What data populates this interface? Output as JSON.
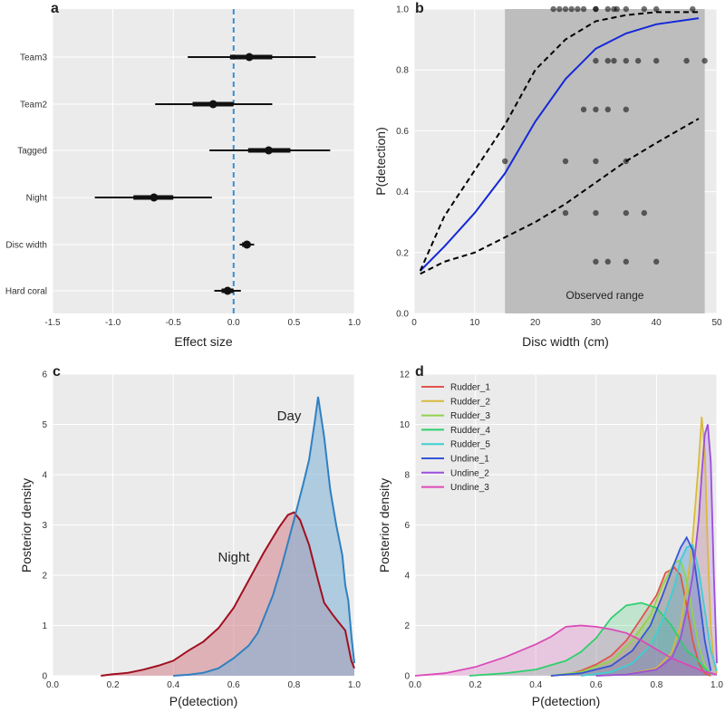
{
  "chart_data": [
    {
      "panel": "a",
      "type": "forest",
      "xlabel": "Effect size",
      "xlim": [
        -1.5,
        1.0
      ],
      "xticks": [
        "-1.5",
        "-1.0",
        "-0.5",
        "0.0",
        "0.5",
        "1.0"
      ],
      "reference_line": 0,
      "colors": {
        "reference": "#3a8fd0",
        "marks": "#111111"
      },
      "rows": [
        {
          "label": "Team3",
          "mean": 0.13,
          "inner": [
            -0.03,
            0.32
          ],
          "outer": [
            -0.38,
            0.68
          ]
        },
        {
          "label": "Team2",
          "mean": -0.17,
          "inner": [
            -0.34,
            0.0
          ],
          "outer": [
            -0.65,
            0.32
          ]
        },
        {
          "label": "Tagged",
          "mean": 0.29,
          "inner": [
            0.12,
            0.47
          ],
          "outer": [
            -0.2,
            0.8
          ]
        },
        {
          "label": "Night",
          "mean": -0.66,
          "inner": [
            -0.83,
            -0.5
          ],
          "outer": [
            -1.15,
            -0.18
          ]
        },
        {
          "label": "Disc width",
          "mean": 0.11,
          "inner": [
            0.07,
            0.14
          ],
          "outer": [
            0.05,
            0.17
          ]
        },
        {
          "label": "Hard coral",
          "mean": -0.05,
          "inner": [
            -0.1,
            0.0
          ],
          "outer": [
            -0.16,
            0.06
          ]
        }
      ]
    },
    {
      "panel": "b",
      "type": "line",
      "xlabel": "Disc width (cm)",
      "ylabel": "P(detection)",
      "xlim": [
        0,
        50
      ],
      "ylim": [
        0,
        1
      ],
      "xticks": [
        "0",
        "10",
        "20",
        "30",
        "40",
        "50"
      ],
      "yticks": [
        "0.0",
        "0.2",
        "0.4",
        "0.6",
        "0.8",
        "1.0"
      ],
      "shaded_range": {
        "x": [
          15,
          48
        ],
        "label": "Observed range",
        "color": "#bdbdbd"
      },
      "series": [
        {
          "role": "mean",
          "color": "#1428d8",
          "x": [
            1,
            5,
            10,
            15,
            20,
            25,
            30,
            35,
            40,
            47
          ],
          "y": [
            0.14,
            0.22,
            0.33,
            0.46,
            0.63,
            0.77,
            0.87,
            0.92,
            0.95,
            0.97
          ]
        },
        {
          "role": "upper",
          "color": "#000000",
          "x": [
            1,
            5,
            10,
            15,
            20,
            25,
            30,
            35,
            40,
            47
          ],
          "y": [
            0.14,
            0.32,
            0.47,
            0.62,
            0.8,
            0.9,
            0.96,
            0.98,
            0.99,
            0.99
          ]
        },
        {
          "role": "lower",
          "color": "#000000",
          "x": [
            1,
            5,
            10,
            15,
            20,
            25,
            30,
            35,
            40,
            47
          ],
          "y": [
            0.13,
            0.17,
            0.2,
            0.25,
            0.3,
            0.36,
            0.43,
            0.5,
            0.56,
            0.64
          ]
        }
      ],
      "points": [
        [
          23,
          1.0
        ],
        [
          24,
          1.0
        ],
        [
          25,
          1.0
        ],
        [
          26,
          1.0
        ],
        [
          27,
          1.0
        ],
        [
          28,
          1.0
        ],
        [
          30,
          1.0
        ],
        [
          30,
          1.0
        ],
        [
          32,
          1.0
        ],
        [
          33,
          1.0
        ],
        [
          33.5,
          1.0
        ],
        [
          35,
          1.0
        ],
        [
          38,
          1.0
        ],
        [
          40,
          1.0
        ],
        [
          46,
          1.0
        ],
        [
          30,
          0.83
        ],
        [
          32,
          0.83
        ],
        [
          33,
          0.83
        ],
        [
          35,
          0.83
        ],
        [
          37,
          0.83
        ],
        [
          40,
          0.83
        ],
        [
          45,
          0.83
        ],
        [
          48,
          0.83
        ],
        [
          28,
          0.67
        ],
        [
          30,
          0.67
        ],
        [
          32,
          0.67
        ],
        [
          35,
          0.67
        ],
        [
          15,
          0.5
        ],
        [
          25,
          0.5
        ],
        [
          30,
          0.5
        ],
        [
          35,
          0.5
        ],
        [
          25,
          0.33
        ],
        [
          30,
          0.33
        ],
        [
          35,
          0.33
        ],
        [
          38,
          0.33
        ],
        [
          30,
          0.17
        ],
        [
          32,
          0.17
        ],
        [
          35,
          0.17
        ],
        [
          40,
          0.17
        ]
      ]
    },
    {
      "panel": "c",
      "type": "area",
      "xlabel": "P(detection)",
      "ylabel": "Posterior density",
      "xlim": [
        0,
        1
      ],
      "ylim": [
        0,
        6
      ],
      "xticks": [
        "0.0",
        "0.2",
        "0.4",
        "0.6",
        "0.8",
        "1.0"
      ],
      "yticks": [
        "0",
        "1",
        "2",
        "3",
        "4",
        "5",
        "6"
      ],
      "series": [
        {
          "name": "Night",
          "color": "#a01020",
          "fill": "#d4818d",
          "x": [
            0.16,
            0.2,
            0.25,
            0.3,
            0.35,
            0.4,
            0.45,
            0.5,
            0.55,
            0.6,
            0.65,
            0.7,
            0.75,
            0.78,
            0.8,
            0.82,
            0.85,
            0.88,
            0.9,
            0.93,
            0.95,
            0.97,
            0.98,
            0.99,
            1.0
          ],
          "y": [
            0.0,
            0.03,
            0.06,
            0.12,
            0.2,
            0.3,
            0.5,
            0.68,
            0.95,
            1.35,
            1.9,
            2.45,
            2.95,
            3.2,
            3.25,
            3.1,
            2.6,
            1.9,
            1.45,
            1.2,
            1.05,
            0.9,
            0.6,
            0.3,
            0.15
          ]
        },
        {
          "name": "Day",
          "color": "#3080c0",
          "fill": "#7bb1d6",
          "x": [
            0.4,
            0.45,
            0.5,
            0.55,
            0.6,
            0.65,
            0.68,
            0.7,
            0.73,
            0.76,
            0.8,
            0.83,
            0.85,
            0.87,
            0.88,
            0.9,
            0.92,
            0.94,
            0.96,
            0.97,
            0.98,
            0.99,
            1.0
          ],
          "y": [
            0.0,
            0.02,
            0.06,
            0.15,
            0.35,
            0.6,
            0.85,
            1.15,
            1.6,
            2.2,
            3.1,
            3.8,
            4.3,
            5.1,
            5.55,
            4.75,
            3.7,
            3.0,
            2.4,
            1.8,
            1.5,
            0.8,
            0.25
          ]
        }
      ]
    },
    {
      "panel": "d",
      "type": "area",
      "xlabel": "P(detection)",
      "ylabel": "Posterior density",
      "xlim": [
        0,
        1
      ],
      "ylim": [
        0,
        12
      ],
      "xticks": [
        "0.0",
        "0.2",
        "0.4",
        "0.6",
        "0.8",
        "1.0"
      ],
      "yticks": [
        "0",
        "2",
        "4",
        "6",
        "8",
        "10",
        "12"
      ],
      "legend": "top-left",
      "series": [
        {
          "name": "Rudder_1",
          "color": "#e0544c",
          "x": [
            0.45,
            0.5,
            0.55,
            0.6,
            0.65,
            0.7,
            0.75,
            0.8,
            0.83,
            0.86,
            0.88,
            0.9,
            0.92,
            0.94,
            0.96,
            0.98
          ],
          "y": [
            0.0,
            0.05,
            0.2,
            0.45,
            0.8,
            1.4,
            2.3,
            3.2,
            4.1,
            4.3,
            4.0,
            2.8,
            1.4,
            0.5,
            0.1,
            0.0
          ]
        },
        {
          "name": "Rudder_2",
          "color": "#d9b93e",
          "x": [
            0.6,
            0.7,
            0.8,
            0.85,
            0.88,
            0.9,
            0.92,
            0.94,
            0.95,
            0.96,
            0.97,
            0.98,
            0.99,
            1.0
          ],
          "y": [
            0.0,
            0.05,
            0.3,
            0.9,
            2.0,
            3.5,
            5.5,
            8.5,
            10.3,
            9.0,
            5.0,
            2.0,
            0.5,
            0.1
          ]
        },
        {
          "name": "Rudder_3",
          "color": "#8fd44a",
          "x": [
            0.45,
            0.55,
            0.65,
            0.72,
            0.78,
            0.82,
            0.86,
            0.88,
            0.9,
            0.92,
            0.94,
            0.96,
            0.98
          ],
          "y": [
            0.0,
            0.15,
            0.6,
            1.4,
            2.4,
            3.6,
            4.5,
            4.6,
            3.8,
            2.4,
            1.2,
            0.4,
            0.05
          ]
        },
        {
          "name": "Rudder_4",
          "color": "#2fcf6e",
          "x": [
            0.18,
            0.3,
            0.4,
            0.5,
            0.55,
            0.6,
            0.65,
            0.7,
            0.75,
            0.8,
            0.85,
            0.88,
            0.9,
            0.93,
            0.96,
            0.98
          ],
          "y": [
            0.0,
            0.1,
            0.25,
            0.6,
            0.95,
            1.5,
            2.3,
            2.8,
            2.9,
            2.7,
            2.0,
            1.4,
            1.0,
            0.7,
            0.3,
            0.05
          ]
        },
        {
          "name": "Rudder_5",
          "color": "#3ecfd2",
          "x": [
            0.55,
            0.65,
            0.72,
            0.78,
            0.82,
            0.86,
            0.88,
            0.9,
            0.92,
            0.94,
            0.96,
            0.98,
            1.0
          ],
          "y": [
            0.0,
            0.15,
            0.5,
            1.2,
            2.2,
            3.6,
            4.6,
            5.1,
            5.2,
            4.2,
            2.6,
            1.0,
            0.2
          ]
        },
        {
          "name": "Undine_1",
          "color": "#3556d8",
          "x": [
            0.45,
            0.55,
            0.65,
            0.72,
            0.78,
            0.82,
            0.86,
            0.88,
            0.9,
            0.92,
            0.94,
            0.96,
            0.98
          ],
          "y": [
            0.0,
            0.1,
            0.4,
            1.0,
            2.0,
            3.2,
            4.5,
            5.1,
            5.5,
            5.0,
            3.3,
            1.4,
            0.2
          ]
        },
        {
          "name": "Undine_2",
          "color": "#9a4fdc",
          "x": [
            0.6,
            0.7,
            0.8,
            0.85,
            0.88,
            0.9,
            0.92,
            0.94,
            0.95,
            0.96,
            0.97,
            0.98,
            0.99,
            1.0
          ],
          "y": [
            0.0,
            0.05,
            0.25,
            0.7,
            1.5,
            2.6,
            4.0,
            6.2,
            8.0,
            9.6,
            10.0,
            8.5,
            4.0,
            0.5
          ]
        },
        {
          "name": "Undine_3",
          "color": "#dc49b8",
          "x": [
            0.0,
            0.1,
            0.2,
            0.3,
            0.4,
            0.45,
            0.5,
            0.55,
            0.6,
            0.65,
            0.7,
            0.75,
            0.8,
            0.85,
            0.9,
            0.95,
            1.0
          ],
          "y": [
            0.0,
            0.1,
            0.35,
            0.75,
            1.25,
            1.55,
            1.95,
            2.0,
            1.95,
            1.85,
            1.7,
            1.4,
            1.05,
            0.7,
            0.45,
            0.2,
            0.05
          ]
        }
      ]
    }
  ],
  "annotations": {
    "day": "Day",
    "night": "Night"
  }
}
